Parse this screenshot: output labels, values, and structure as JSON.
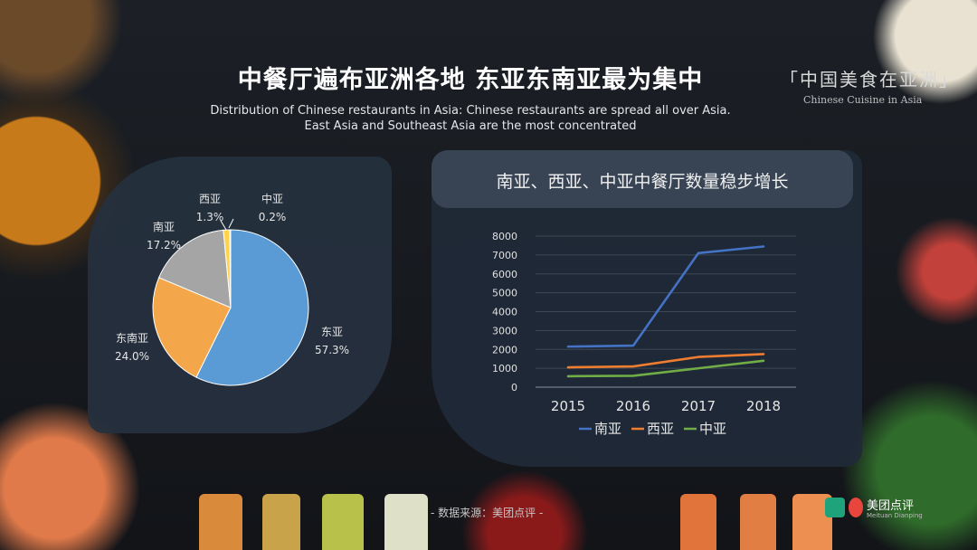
{
  "header": {
    "title": "中餐厅遍布亚洲各地 东亚东南亚最为集中",
    "subtitle_lines": [
      "Distribution of Chinese restaurants in Asia: Chinese restaurants are spread all over Asia.",
      "East Asia and Southeast Asia are the most concentrated"
    ]
  },
  "brand": {
    "name": "「中国美食在亚洲」",
    "sub": "Chinese Cuisine in Asia"
  },
  "footer": {
    "source": "- 数据来源：美团点评 -",
    "logo_text": "美团点评",
    "logo_sub": "Meituan Dianping"
  },
  "colors": {
    "blue": "#5b9bd5",
    "orange": "#f4a74a",
    "gray": "#a5a5a5",
    "yellow": "#ffd34e",
    "line_blue": "#4472c4",
    "line_orange": "#ed7d31",
    "line_green": "#70ad47"
  },
  "chart_data": [
    {
      "type": "pie",
      "title": "",
      "slices": [
        {
          "label": "东亚",
          "value": 57.3,
          "display": "57.3%",
          "color": "#5b9bd5"
        },
        {
          "label": "东南亚",
          "value": 24.0,
          "display": "24.0%",
          "color": "#f4a74a"
        },
        {
          "label": "南亚",
          "value": 17.2,
          "display": "17.2%",
          "color": "#a5a5a5"
        },
        {
          "label": "西亚",
          "value": 1.3,
          "display": "1.3%",
          "color": "#ffd34e"
        },
        {
          "label": "中亚",
          "value": 0.2,
          "display": "0.2%",
          "color": "#ffd34e"
        }
      ]
    },
    {
      "type": "line",
      "title": "南亚、西亚、中亚中餐厅数量稳步增长",
      "xlabel": "",
      "ylabel": "",
      "x": [
        "2015",
        "2016",
        "2017",
        "2018"
      ],
      "ylim": [
        0,
        8000
      ],
      "yticks": [
        0,
        1000,
        2000,
        3000,
        4000,
        5000,
        6000,
        7000,
        8000
      ],
      "grid": true,
      "legend": "bottom",
      "series": [
        {
          "name": "南亚",
          "values": [
            2150,
            2200,
            7100,
            7450
          ],
          "color": "#4472c4"
        },
        {
          "name": "西亚",
          "values": [
            1050,
            1100,
            1600,
            1750
          ],
          "color": "#ed7d31"
        },
        {
          "name": "中亚",
          "values": [
            580,
            600,
            1000,
            1400
          ],
          "color": "#70ad47"
        }
      ]
    }
  ]
}
